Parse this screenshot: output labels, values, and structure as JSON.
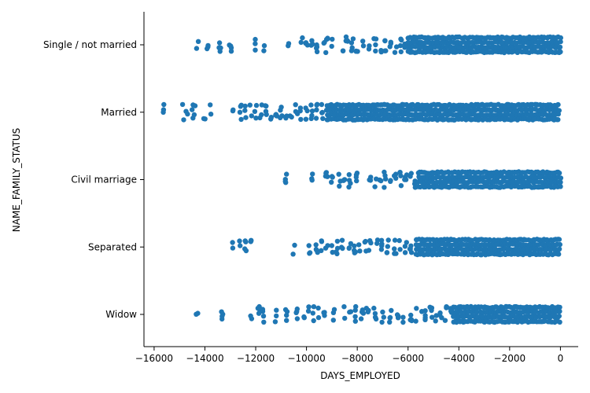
{
  "chart_data": {
    "type": "scatter",
    "subtype": "strip",
    "title": "",
    "xlabel": "DAYS_EMPLOYED",
    "ylabel": "NAME_FAMILY_STATUS",
    "xlim": [
      -16400,
      700
    ],
    "x_ticks": [
      -16000,
      -14000,
      -12000,
      -10000,
      -8000,
      -6000,
      -4000,
      -2000,
      0
    ],
    "x_tick_labels": [
      "−16000",
      "−14000",
      "−12000",
      "−10000",
      "−8000",
      "−6000",
      "−4000",
      "−2000",
      "0"
    ],
    "categories": [
      "Single / not married",
      "Married",
      "Civil marriage",
      "Separated",
      "Widow"
    ],
    "color": "#1f77b4",
    "grid": false,
    "legend": "none",
    "series": [
      {
        "category": "Single / not married",
        "dense_from": -6000,
        "dense_to": 0,
        "points": [
          -14300,
          -13900,
          -13400,
          -13000,
          -12000,
          -11700,
          -10700,
          -10200,
          -10000,
          -9800,
          -9600,
          -9300,
          -9200,
          -9000,
          -8600,
          -8400,
          -8200,
          -8000,
          -7800,
          -7500,
          -7300,
          -7100,
          -6900,
          -6700,
          -6500,
          -6300,
          -6100
        ]
      },
      {
        "category": "Married",
        "dense_from": -9200,
        "dense_to": 0,
        "points": [
          -15650,
          -14850,
          -14700,
          -14500,
          -14400,
          -14000,
          -13800,
          -12900,
          -12600,
          -12400,
          -12200,
          -12000,
          -11800,
          -11600,
          -11400,
          -11200,
          -11000,
          -10800,
          -10600,
          -10400,
          -10200,
          -10000,
          -9800,
          -9600,
          -9400
        ]
      },
      {
        "category": "Civil marriage",
        "dense_from": -5600,
        "dense_to": 0,
        "points": [
          -10800,
          -9800,
          -9200,
          -9000,
          -8700,
          -8500,
          -8300,
          -8000,
          -7500,
          -7300,
          -7100,
          -6900,
          -6700,
          -6500,
          -6300,
          -6100,
          -5900,
          -5700
        ]
      },
      {
        "category": "Separated",
        "dense_from": -5700,
        "dense_to": 0,
        "points": [
          -12900,
          -12600,
          -12400,
          -12200,
          -10500,
          -9900,
          -9600,
          -9400,
          -9200,
          -9000,
          -8800,
          -8600,
          -8300,
          -8100,
          -7900,
          -7700,
          -7500,
          -7200,
          -7000,
          -6800,
          -6500,
          -6300,
          -6100,
          -5900
        ]
      },
      {
        "category": "Widow",
        "dense_from": -4200,
        "dense_to": 0,
        "points": [
          -14300,
          -13300,
          -12200,
          -11900,
          -11700,
          -11200,
          -10800,
          -10400,
          -10100,
          -9900,
          -9700,
          -9500,
          -9300,
          -8900,
          -8500,
          -8300,
          -8100,
          -7800,
          -7600,
          -7300,
          -7000,
          -6700,
          -6400,
          -6200,
          -5900,
          -5700,
          -5500,
          -5300,
          -5100,
          -4900,
          -4700,
          -4500,
          -4300
        ]
      }
    ]
  }
}
